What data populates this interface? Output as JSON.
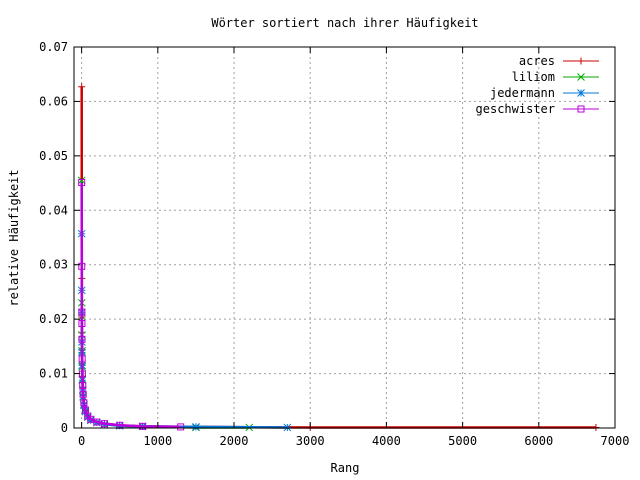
{
  "chart_data": {
    "type": "line",
    "title": "Wörter sortiert nach ihrer Häufigkeit",
    "xlabel": "Rang",
    "ylabel": "relative Häufigkeit",
    "xlim": [
      -100,
      7000
    ],
    "ylim": [
      0,
      0.07
    ],
    "xticks": [
      0,
      1000,
      2000,
      3000,
      4000,
      5000,
      6000,
      7000
    ],
    "yticks": [
      0,
      0.01,
      0.02,
      0.03,
      0.04,
      0.05,
      0.06,
      0.07
    ],
    "grid": true,
    "legend_position": "top-right",
    "series": [
      {
        "name": "acres",
        "color": "#cc0000",
        "marker": "plus",
        "points": [
          [
            1,
            0.0627
          ],
          [
            2,
            0.0275
          ],
          [
            3,
            0.0204
          ],
          [
            4,
            0.0175
          ],
          [
            5,
            0.0143
          ],
          [
            7,
            0.0118
          ],
          [
            10,
            0.0095
          ],
          [
            15,
            0.0075
          ],
          [
            20,
            0.006
          ],
          [
            30,
            0.0045
          ],
          [
            50,
            0.0032
          ],
          [
            80,
            0.0022
          ],
          [
            120,
            0.0016
          ],
          [
            200,
            0.0011
          ],
          [
            300,
            0.0008
          ],
          [
            500,
            0.0005
          ],
          [
            800,
            0.0003
          ],
          [
            1500,
            0.0002
          ],
          [
            3000,
            0.0001
          ],
          [
            6750,
            0.0001
          ]
        ]
      },
      {
        "name": "liliom",
        "color": "#00aa00",
        "marker": "cross",
        "points": [
          [
            1,
            0.0455
          ],
          [
            2,
            0.023
          ],
          [
            3,
            0.0205
          ],
          [
            4,
            0.0171
          ],
          [
            5,
            0.0142
          ],
          [
            7,
            0.0112
          ],
          [
            10,
            0.009
          ],
          [
            15,
            0.007
          ],
          [
            20,
            0.0058
          ],
          [
            30,
            0.0043
          ],
          [
            50,
            0.0031
          ],
          [
            80,
            0.0021
          ],
          [
            120,
            0.0015
          ],
          [
            200,
            0.001
          ],
          [
            300,
            0.0007
          ],
          [
            500,
            0.0004
          ],
          [
            800,
            0.0003
          ],
          [
            1500,
            0.0001
          ],
          [
            2200,
            0.0001
          ]
        ]
      },
      {
        "name": "jedermann",
        "color": "#0077dd",
        "marker": "star",
        "points": [
          [
            1,
            0.0357
          ],
          [
            2,
            0.0253
          ],
          [
            3,
            0.0212
          ],
          [
            4,
            0.0158
          ],
          [
            5,
            0.0139
          ],
          [
            7,
            0.0115
          ],
          [
            10,
            0.0088
          ],
          [
            15,
            0.007
          ],
          [
            20,
            0.0057
          ],
          [
            30,
            0.0042
          ],
          [
            50,
            0.003
          ],
          [
            80,
            0.002
          ],
          [
            120,
            0.0014
          ],
          [
            200,
            0.001
          ],
          [
            300,
            0.0007
          ],
          [
            500,
            0.0004
          ],
          [
            800,
            0.0003
          ],
          [
            1500,
            0.0002
          ],
          [
            2700,
            0.0001
          ]
        ]
      },
      {
        "name": "geschwister",
        "color": "#bb00dd",
        "marker": "square",
        "points": [
          [
            1,
            0.0451
          ],
          [
            2,
            0.0297
          ],
          [
            3,
            0.0213
          ],
          [
            4,
            0.0192
          ],
          [
            5,
            0.0163
          ],
          [
            7,
            0.0127
          ],
          [
            10,
            0.0099
          ],
          [
            15,
            0.0078
          ],
          [
            20,
            0.0062
          ],
          [
            30,
            0.0046
          ],
          [
            50,
            0.0033
          ],
          [
            80,
            0.0022
          ],
          [
            120,
            0.0016
          ],
          [
            200,
            0.0011
          ],
          [
            300,
            0.0008
          ],
          [
            500,
            0.0005
          ],
          [
            800,
            0.0003
          ],
          [
            1300,
            0.0002
          ]
        ]
      }
    ]
  }
}
